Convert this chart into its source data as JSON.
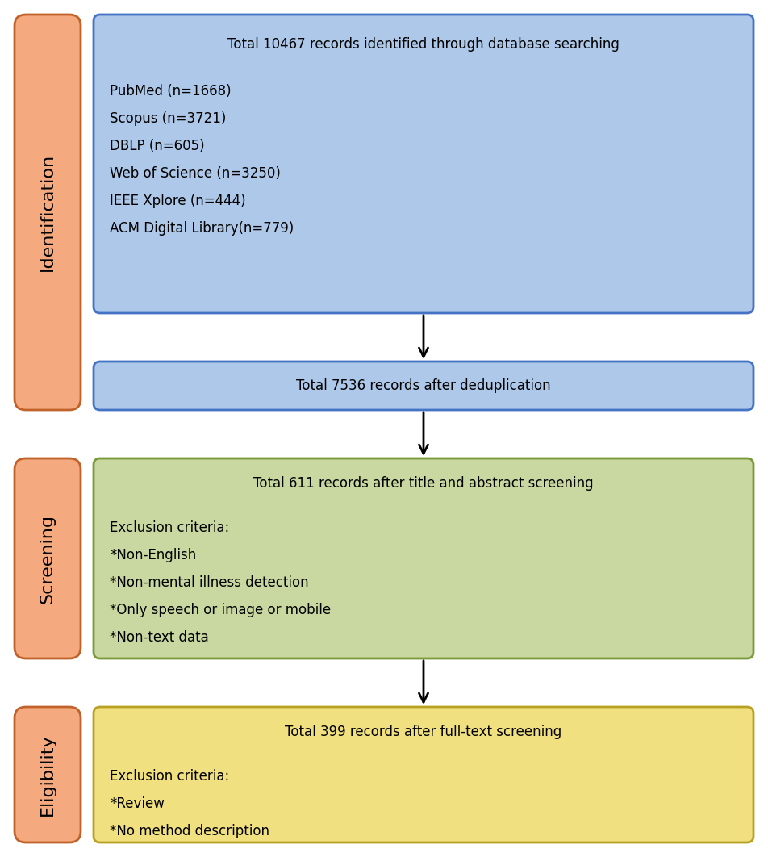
{
  "background_color": "#ffffff",
  "sidebar_labels": [
    "Identification",
    "Screening",
    "Eligibility"
  ],
  "sidebar_color": "#f4a97f",
  "sidebar_border_color": "#c0622a",
  "sidebar_text_color": "#000000",
  "box1_title": "Total 10467 records identified through database searching",
  "box1_lines": [
    "PubMed (n=1668)",
    "Scopus (n=3721)",
    "DBLP (n=605)",
    "Web of Science (n=3250)",
    "IEEE Xplore (n=444)",
    "ACM Digital Library(n=779)"
  ],
  "box1_color": "#adc8e8",
  "box1_border": "#4472c4",
  "box2_title": "Total 7536 records after deduplication",
  "box2_color": "#adc8e8",
  "box2_border": "#4472c4",
  "box3_title": "Total 611 records after title and abstract screening",
  "box3_lines": [
    "Exclusion criteria:",
    "*Non-English",
    "*Non-mental illness detection",
    "*Only speech or image or mobile",
    "*Non-text data"
  ],
  "box3_color": "#c8d8a0",
  "box3_border": "#7a9a3a",
  "box4_title": "Total 399 records after full-text screening",
  "box4_lines": [
    "Exclusion criteria:",
    "*Review",
    "*No method description"
  ],
  "box4_color": "#f0e080",
  "box4_border": "#b8a020",
  "arrow_color": "#000000",
  "text_color": "#000000",
  "font_size": 12,
  "title_font_size": 12,
  "fig_width": 9.52,
  "fig_height": 10.62,
  "dpi": 100
}
